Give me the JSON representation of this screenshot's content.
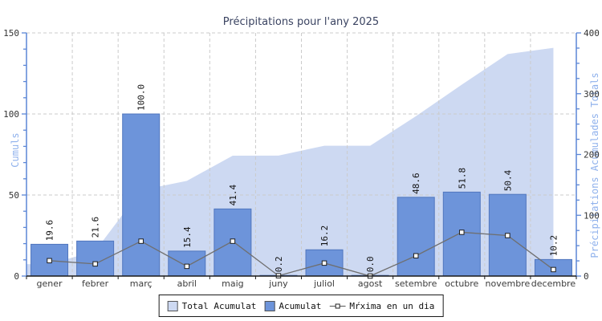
{
  "chart_data": {
    "type": "combo-bar-area-line",
    "title": "Précipitations pour l'any 2025",
    "categories": [
      "gener",
      "febrer",
      "març",
      "abril",
      "maig",
      "juny",
      "juliol",
      "agost",
      "setembre",
      "octubre",
      "novembre",
      "decembre"
    ],
    "series": [
      {
        "name": "Total Acumulat",
        "type": "area",
        "axis": "right",
        "values": [
          19.6,
          41.2,
          141.2,
          156.6,
          198.0,
          198.2,
          214.4,
          214.4,
          263.0,
          314.8,
          365.2,
          375.4
        ],
        "color": "#cdd9f2"
      },
      {
        "name": "Acumulat",
        "type": "bar",
        "axis": "left",
        "values": [
          19.6,
          21.6,
          100.0,
          15.4,
          41.4,
          0.2,
          16.2,
          0.0,
          48.6,
          51.8,
          50.4,
          10.2
        ],
        "value_labels": [
          "19.6",
          "21.6",
          "100.0",
          "15.4",
          "41.4",
          "0.2",
          "16.2",
          "0.0",
          "48.6",
          "51.8",
          "50.4",
          "10.2"
        ],
        "color": "#6d94da",
        "border_color": "#5076be"
      },
      {
        "name": "Mŕxima en un dia",
        "type": "line",
        "axis": "left",
        "values": [
          9.5,
          7.5,
          21.5,
          6.0,
          21.5,
          0.2,
          8.0,
          0.0,
          12.5,
          27.0,
          25.0,
          4.0
        ],
        "color": "#6f6f6f",
        "marker": "square",
        "marker_fill": "#ffffff",
        "marker_stroke": "#1f1f1f"
      }
    ],
    "left_axis": {
      "label": "Cumuls",
      "min": 0,
      "max": 150,
      "major_step": 50,
      "minor_step": 10,
      "ticks": [
        0,
        50,
        100,
        150
      ]
    },
    "right_axis": {
      "label": "Précipitations Acumulades Totals",
      "min": 0,
      "max": 400,
      "major_step": 100,
      "minor_step": 25,
      "ticks": [
        0,
        100,
        200,
        300,
        400
      ]
    },
    "grid": {
      "horizontal": true,
      "vertical": true,
      "style": "dashed",
      "color": "#cbcbcb"
    },
    "legend_position": "bottom-center",
    "colors": {
      "axis_line": "#5b86d6",
      "bottom_axis_line": "#1a1a1a",
      "title_text": "#3a4361",
      "axis_title_text": "#8fb1ec",
      "tick_text": "#333333"
    }
  }
}
